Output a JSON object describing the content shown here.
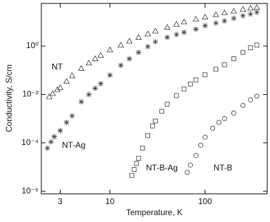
{
  "chart_data": {
    "type": "scatter",
    "x_label": "Temperature, K",
    "y_label": "Conductivity, S/cm",
    "x_scale": "log",
    "y_scale": "log",
    "xlim": [
      1.9,
      450
    ],
    "ylim": [
      7.8e-07,
      58
    ],
    "xticks": [
      3,
      10,
      100
    ],
    "yticks": [
      {
        "value": 1e-06,
        "label": "10⁻⁶"
      },
      {
        "value": 0.0001,
        "label": "10⁻⁴"
      },
      {
        "value": 0.01,
        "label": "10⁻²"
      },
      {
        "value": 1,
        "label": "10⁰"
      }
    ],
    "series": [
      {
        "name": "NT",
        "color": "#333333",
        "marker": "triangle",
        "x": [
          2.3,
          2.5,
          2.8,
          3,
          3.5,
          4,
          5,
          6,
          7,
          8,
          10,
          13,
          16,
          20,
          25,
          30,
          40,
          50,
          60,
          80,
          100,
          130,
          160,
          200,
          250,
          300,
          350
        ],
        "values": [
          0.008,
          0.011,
          0.016,
          0.019,
          0.035,
          0.06,
          0.12,
          0.2,
          0.3,
          0.42,
          0.7,
          1.1,
          1.6,
          2.3,
          3.2,
          4.2,
          6,
          8,
          10,
          13,
          16,
          20,
          24,
          28,
          33,
          37,
          40
        ]
      },
      {
        "name": "NT-Ag",
        "color": "#333333",
        "marker": "asterisk",
        "x": [
          2.2,
          2.4,
          2.6,
          3,
          3.5,
          4,
          5,
          6,
          7,
          8,
          10,
          13,
          16,
          20,
          25,
          30,
          40,
          50,
          60,
          80,
          100,
          130,
          160,
          200,
          250,
          300,
          350
        ],
        "values": [
          6e-05,
          0.00011,
          0.00018,
          0.00032,
          0.0007,
          0.0013,
          0.005,
          0.01,
          0.018,
          0.028,
          0.063,
          0.16,
          0.3,
          0.55,
          0.95,
          1.5,
          2.3,
          3,
          3.7,
          5,
          7,
          9,
          11,
          14,
          18,
          21,
          25
        ]
      },
      {
        "name": "NT-B-Ag",
        "color": "#333333",
        "marker": "square",
        "x": [
          17,
          18,
          19,
          20,
          22,
          25,
          28,
          30,
          35,
          40,
          50,
          60,
          70,
          80,
          100,
          130,
          160,
          200,
          250,
          300,
          350
        ],
        "values": [
          4.5e-06,
          8e-06,
          1.4e-05,
          2.3e-05,
          6e-05,
          0.0002,
          0.0005,
          0.0008,
          0.002,
          0.004,
          0.009,
          0.017,
          0.027,
          0.04,
          0.065,
          0.11,
          0.17,
          0.3,
          0.55,
          0.85,
          1.1
        ]
      },
      {
        "name": "NT-B",
        "color": "#333333",
        "marker": "circle",
        "x": [
          65,
          70,
          80,
          90,
          100,
          120,
          140,
          160,
          200,
          250,
          300,
          350
        ],
        "values": [
          6e-06,
          1.2e-05,
          3e-05,
          8e-05,
          0.00017,
          0.0004,
          0.0007,
          0.001,
          0.0017,
          0.0035,
          0.006,
          0.0085
        ]
      }
    ]
  }
}
